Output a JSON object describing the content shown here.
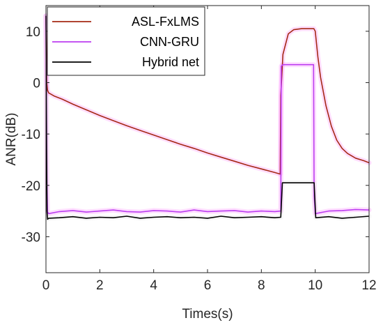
{
  "chart_data": {
    "type": "line",
    "xlabel": "Times(s)",
    "ylabel": "ANR(dB)",
    "xlim": [
      0,
      12
    ],
    "ylim": [
      -37,
      15
    ],
    "x_ticks": [
      "0",
      "2",
      "4",
      "6",
      "8",
      "10",
      "12"
    ],
    "y_ticks": [
      "10",
      "0",
      "-10",
      "-20",
      "-30"
    ],
    "x_tick_values": [
      0,
      2,
      4,
      6,
      8,
      10,
      12
    ],
    "y_tick_values": [
      10,
      0,
      -10,
      -20,
      -30
    ],
    "grid": false,
    "legend_position": "top-left",
    "series": [
      {
        "name": "ASL-FxLMS",
        "color": "#a52a14",
        "glow": "#ff66ff",
        "x": [
          0,
          0.03,
          0.06,
          0.1,
          0.3,
          0.6,
          1,
          1.5,
          2,
          2.5,
          3,
          3.5,
          4,
          4.5,
          5,
          5.5,
          6,
          6.5,
          7,
          7.5,
          8,
          8.5,
          8.7,
          8.72,
          8.8,
          9.0,
          9.2,
          9.5,
          9.8,
          9.95,
          10.0,
          10.1,
          10.2,
          10.4,
          10.6,
          10.8,
          11,
          11.2,
          11.5,
          11.8,
          12
        ],
        "y": [
          13,
          0,
          -1.5,
          -2,
          -2.6,
          -3.2,
          -4.2,
          -5.3,
          -6.4,
          -7.4,
          -8.4,
          -9.3,
          -10.2,
          -11.1,
          -12,
          -12.8,
          -13.7,
          -14.5,
          -15.3,
          -16.1,
          -16.8,
          -17.5,
          -17.8,
          -2.5,
          5.5,
          9.5,
          10.3,
          10.5,
          10.5,
          10.5,
          10,
          5,
          1,
          -4.5,
          -8.5,
          -11.2,
          -12.8,
          -13.8,
          -14.7,
          -15.2,
          -15.6
        ]
      },
      {
        "name": "CNN-GRU",
        "color": "#bb3df0",
        "glow": "#ff66ff",
        "x": [
          0,
          0.02,
          0.04,
          0.06,
          0.1,
          0.5,
          1,
          1.5,
          2,
          2.5,
          3,
          3.5,
          4,
          4.5,
          5,
          5.5,
          6,
          6.5,
          7,
          7.5,
          8,
          8.5,
          8.72,
          8.74,
          8.8,
          9.0,
          9.5,
          9.94,
          9.96,
          10.0,
          10.5,
          11,
          11.5,
          12
        ],
        "y": [
          13,
          -4,
          -20,
          -25.2,
          -25.5,
          -25.1,
          -24.9,
          -25.2,
          -25.0,
          -24.8,
          -25.1,
          -25.2,
          -24.9,
          -25.0,
          -25.2,
          -24.8,
          -25.1,
          -25.0,
          -24.9,
          -25.2,
          -25.0,
          -25.1,
          -25.0,
          3.2,
          3.5,
          3.5,
          3.5,
          3.5,
          -22,
          -25.5,
          -25.0,
          -24.9,
          -24.7,
          -24.8
        ]
      },
      {
        "name": "Hybrid net",
        "color": "#000000",
        "glow": "#d9d9d9",
        "x": [
          0,
          0.02,
          0.04,
          0.06,
          0.1,
          0.5,
          1,
          1.5,
          2,
          2.5,
          3,
          3.5,
          4,
          4.5,
          5,
          5.5,
          6,
          6.5,
          7,
          7.5,
          8,
          8.5,
          8.72,
          8.78,
          9.0,
          9.5,
          9.96,
          10.02,
          10.5,
          11,
          11.5,
          12
        ],
        "y": [
          13,
          -10,
          -25,
          -26.6,
          -26.4,
          -26.3,
          -26.1,
          -26.4,
          -26.2,
          -26.3,
          -26.0,
          -26.4,
          -26.2,
          -26.1,
          -26.3,
          -26.2,
          -26.4,
          -26.0,
          -26.3,
          -26.2,
          -26.1,
          -26.3,
          -26.2,
          -19.5,
          -19.5,
          -19.5,
          -19.5,
          -26.3,
          -26.1,
          -26.4,
          -26.2,
          -26.0
        ]
      }
    ]
  }
}
